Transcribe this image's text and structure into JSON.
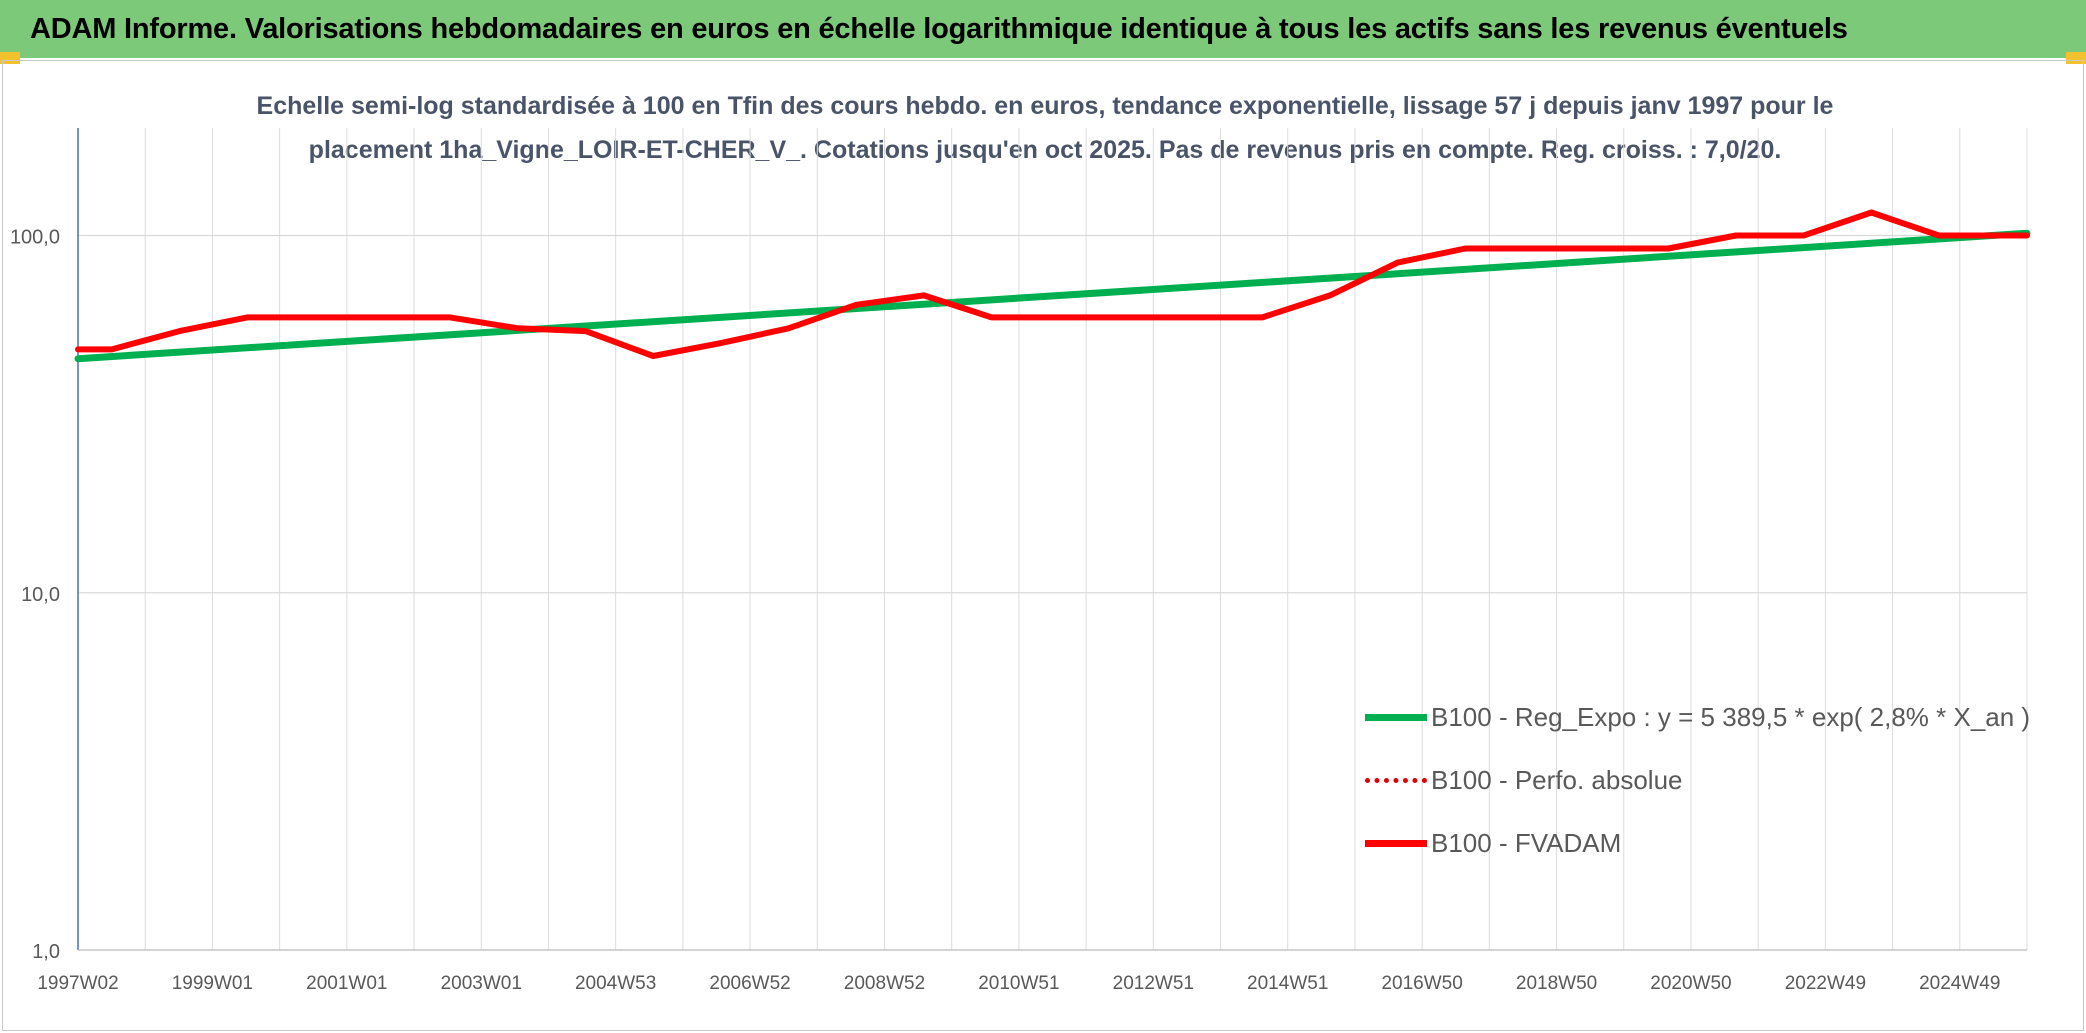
{
  "banner": {
    "title": "ADAM Informe. Valorisations hebdomadaires en euros en échelle logarithmique identique à tous les actifs sans les revenus éventuels"
  },
  "colors": {
    "banner": "#7dc97a",
    "regression": "#00b050",
    "perf": "#e00000",
    "fvadam": "#ff0000",
    "title_text": "#4a5468"
  },
  "chart_data": {
    "type": "line",
    "title_lines": [
      "Echelle semi-log standardisée à 100 en Tfin des cours hebdo. en euros, tendance exponentielle, lissage 57 j depuis janv 1997 pour le",
      "placement 1ha_Vigne_LOIR-ET-CHER_V_. Cotations jusqu'en oct 2025. Pas de revenus pris en compte. Reg. croiss. : 7,0/20."
    ],
    "y_scale": "log",
    "ylim": [
      1,
      200
    ],
    "y_ticks": [
      {
        "value": 1,
        "label": "1,0"
      },
      {
        "value": 10,
        "label": "10,0"
      },
      {
        "value": 100,
        "label": "100,0"
      }
    ],
    "x_tick_labels": [
      "1997W02",
      "1999W01",
      "2001W01",
      "2003W01",
      "2004W53",
      "2006W52",
      "2008W52",
      "2010W51",
      "2012W51",
      "2014W51",
      "2016W50",
      "2018W50",
      "2020W50",
      "2022W49",
      "2024W49"
    ],
    "xlim": [
      1997.0,
      2025.8
    ],
    "grid": true,
    "legend_position": "bottom-right",
    "series": [
      {
        "name": "B100 - Reg_Expo : y = 5 389,5 * exp( 2,8% *  X_an )",
        "color": "#00b050",
        "style": "solid",
        "x": [
          1997.0,
          2025.8
        ],
        "y": [
          45.2,
          101.5
        ]
      },
      {
        "name": "B100 - Perfo. absolue",
        "color": "#e00000",
        "style": "dotted",
        "x": [
          1997.0,
          1997.5,
          1998.5,
          1999.5,
          2001.0,
          2002.5,
          2003.5,
          2004.5,
          2005.5,
          2006.5,
          2007.5,
          2008.5,
          2009.5,
          2010.5,
          2011.5,
          2012.5,
          2013.5,
          2014.5,
          2015.5,
          2016.5,
          2017.5,
          2018.5,
          2019.5,
          2020.5,
          2021.5,
          2022.5,
          2023.5,
          2024.5,
          2025.8
        ],
        "y": [
          48,
          48,
          54,
          59,
          59,
          59,
          55,
          54,
          46,
          50,
          55,
          64,
          68,
          59,
          59,
          59,
          59,
          59,
          68,
          84,
          92,
          92,
          92,
          92,
          100,
          100,
          116,
          100,
          100
        ]
      },
      {
        "name": "B100 - FVADAM",
        "color": "#ff0000",
        "style": "solid",
        "x": [
          1997.0,
          1997.5,
          1998.5,
          1999.5,
          2001.0,
          2002.5,
          2003.5,
          2004.5,
          2005.5,
          2006.5,
          2007.5,
          2008.5,
          2009.5,
          2010.5,
          2011.5,
          2012.5,
          2013.5,
          2014.5,
          2015.5,
          2016.5,
          2017.5,
          2018.5,
          2019.5,
          2020.5,
          2021.5,
          2022.5,
          2023.5,
          2024.5,
          2025.8
        ],
        "y": [
          48,
          48,
          54,
          59,
          59,
          59,
          55,
          54,
          46,
          50,
          55,
          64,
          68,
          59,
          59,
          59,
          59,
          59,
          68,
          84,
          92,
          92,
          92,
          92,
          100,
          100,
          116,
          100,
          100
        ]
      }
    ]
  }
}
